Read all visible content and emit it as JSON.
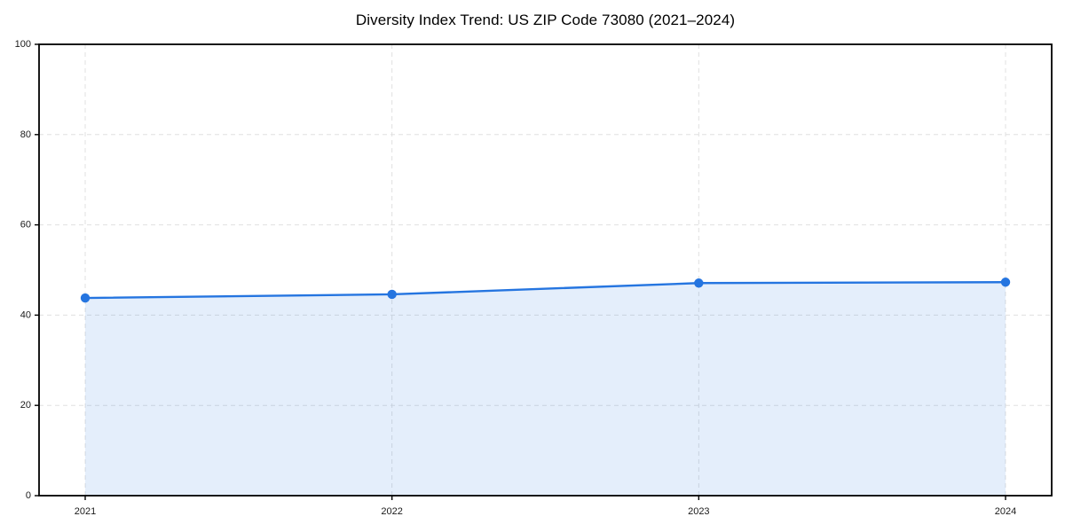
{
  "chart_data": {
    "type": "area",
    "title": "Diversity Index Trend: US ZIP Code 73080 (2021–2024)",
    "categories": [
      "2021",
      "2022",
      "2023",
      "2024"
    ],
    "series": [
      {
        "name": "Diversity Index",
        "values": [
          43.8,
          44.6,
          47.1,
          47.3
        ]
      }
    ],
    "xlabel": "",
    "ylabel": "",
    "ylim": [
      0,
      100
    ],
    "yticks": [
      0,
      20,
      40,
      60,
      80,
      100
    ],
    "grid": true,
    "grid_style": "dashed",
    "legend_position": "none",
    "colors": {
      "line": "#2575e0",
      "marker": "#2575e0",
      "fill": "#2575e0",
      "fill_opacity": "0.12",
      "grid": "#e0e0e0",
      "axis": "#000000",
      "tick_text": "#1a1a1a"
    }
  }
}
